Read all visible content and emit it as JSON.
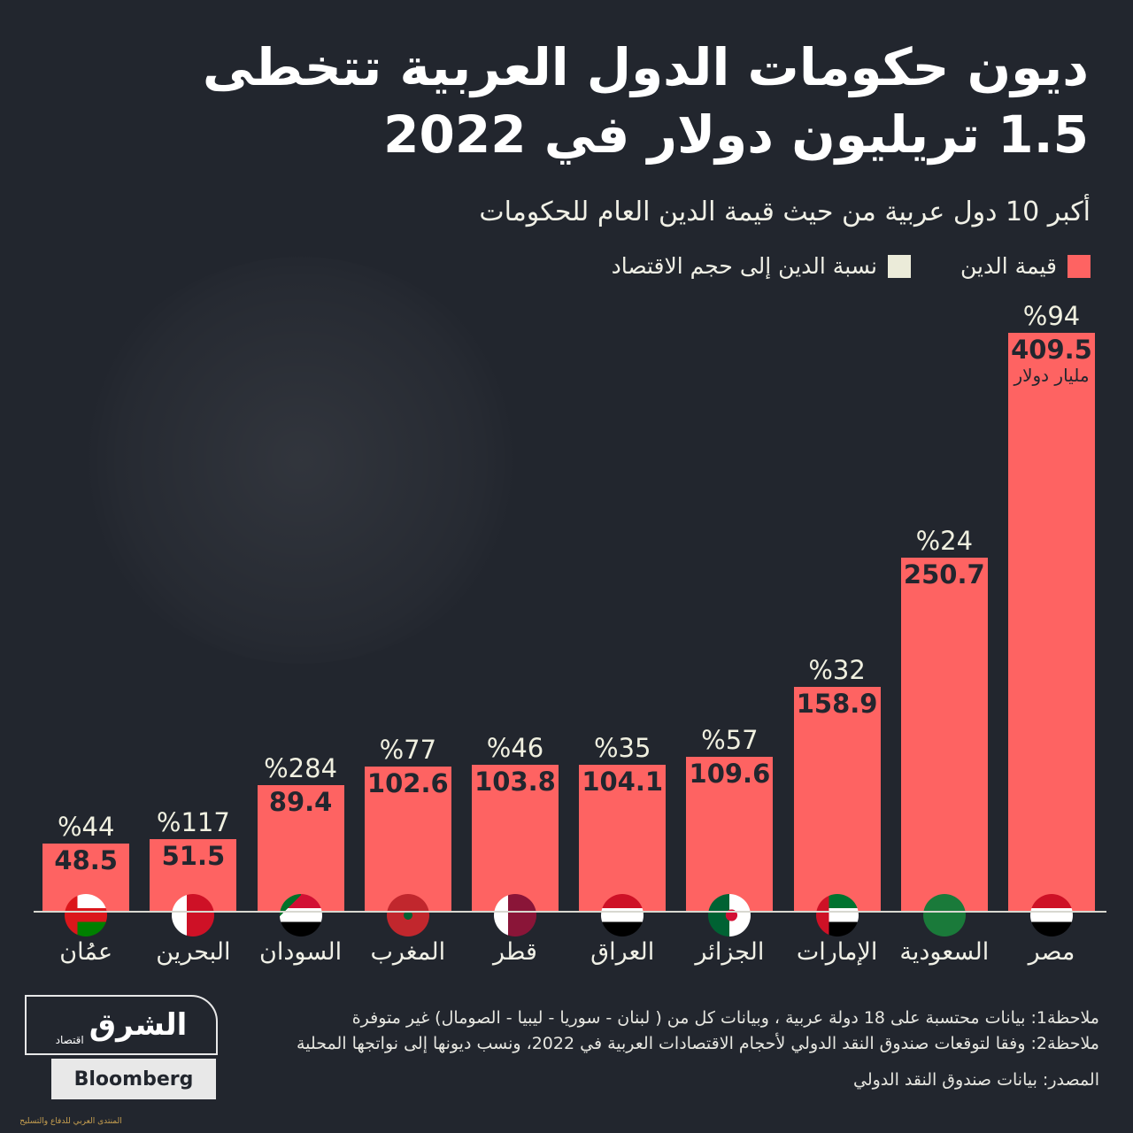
{
  "title": "ديون حكومات الدول العربية تتخطى 1.5 تريليون دولار في 2022",
  "subtitle": "أكبر 10 دول عربية من حيث قيمة الدين العام للحكومات",
  "legend": [
    {
      "label": "قيمة الدين",
      "color": "#fe6362"
    },
    {
      "label": "نسبة الدين إلى حجم الاقتصاد",
      "color": "#ebebd9"
    }
  ],
  "chart_data": {
    "type": "bar",
    "categories": [
      "مصر",
      "السعودية",
      "الإمارات",
      "الجزائر",
      "العراق",
      "قطر",
      "المغرب",
      "السودان",
      "البحرين",
      "عمُان"
    ],
    "series": [
      {
        "name": "قيمة الدين",
        "values": [
          409.5,
          250.7,
          158.9,
          109.6,
          104.1,
          103.8,
          102.6,
          89.4,
          51.5,
          48.5
        ]
      },
      {
        "name": "نسبة الدين إلى حجم الاقتصاد",
        "values": [
          94,
          24,
          32,
          57,
          35,
          46,
          77,
          284,
          117,
          44
        ]
      }
    ],
    "value_labels": [
      "409.5",
      "250.7",
      "158.9",
      "109.6",
      "104.1",
      "103.8",
      "102.6",
      "89.4",
      "51.5",
      "48.5"
    ],
    "pct_labels": [
      "%94",
      "%24",
      "%32",
      "%57",
      "%35",
      "%46",
      "%77",
      "%284",
      "%117",
      "%44"
    ],
    "unit_label": "مليار دولار",
    "ylim": [
      0,
      409.5
    ],
    "grid": false,
    "legend_position": "top-right",
    "bar_color": "#fe6362",
    "flags": [
      "egypt-flag",
      "saudi-flag",
      "uae-flag",
      "algeria-flag",
      "iraq-flag",
      "qatar-flag",
      "morocco-flag",
      "sudan-flag",
      "bahrain-flag",
      "oman-flag"
    ]
  },
  "notes": {
    "note1": "ملاحظة1: بيانات محتسبة على 18 دولة عربية ، وبيانات كل من ( لبنان - سوريا - ليبيا - الصومال) غير متوفرة",
    "note2": "ملاحظة2: وفقا لتوقعات صندوق النقد الدولي لأحجام الاقتصادات العربية في 2022، ونسب ديونها إلى نواتجها المحلية",
    "source": "المصدر: بيانات صندوق النقد الدولي"
  },
  "logo": {
    "main": "الشرق",
    "sub": "اقتصاد",
    "partner": "Bloomberg"
  },
  "watermark": "المنتدى العربي للدفاع والتسليح"
}
